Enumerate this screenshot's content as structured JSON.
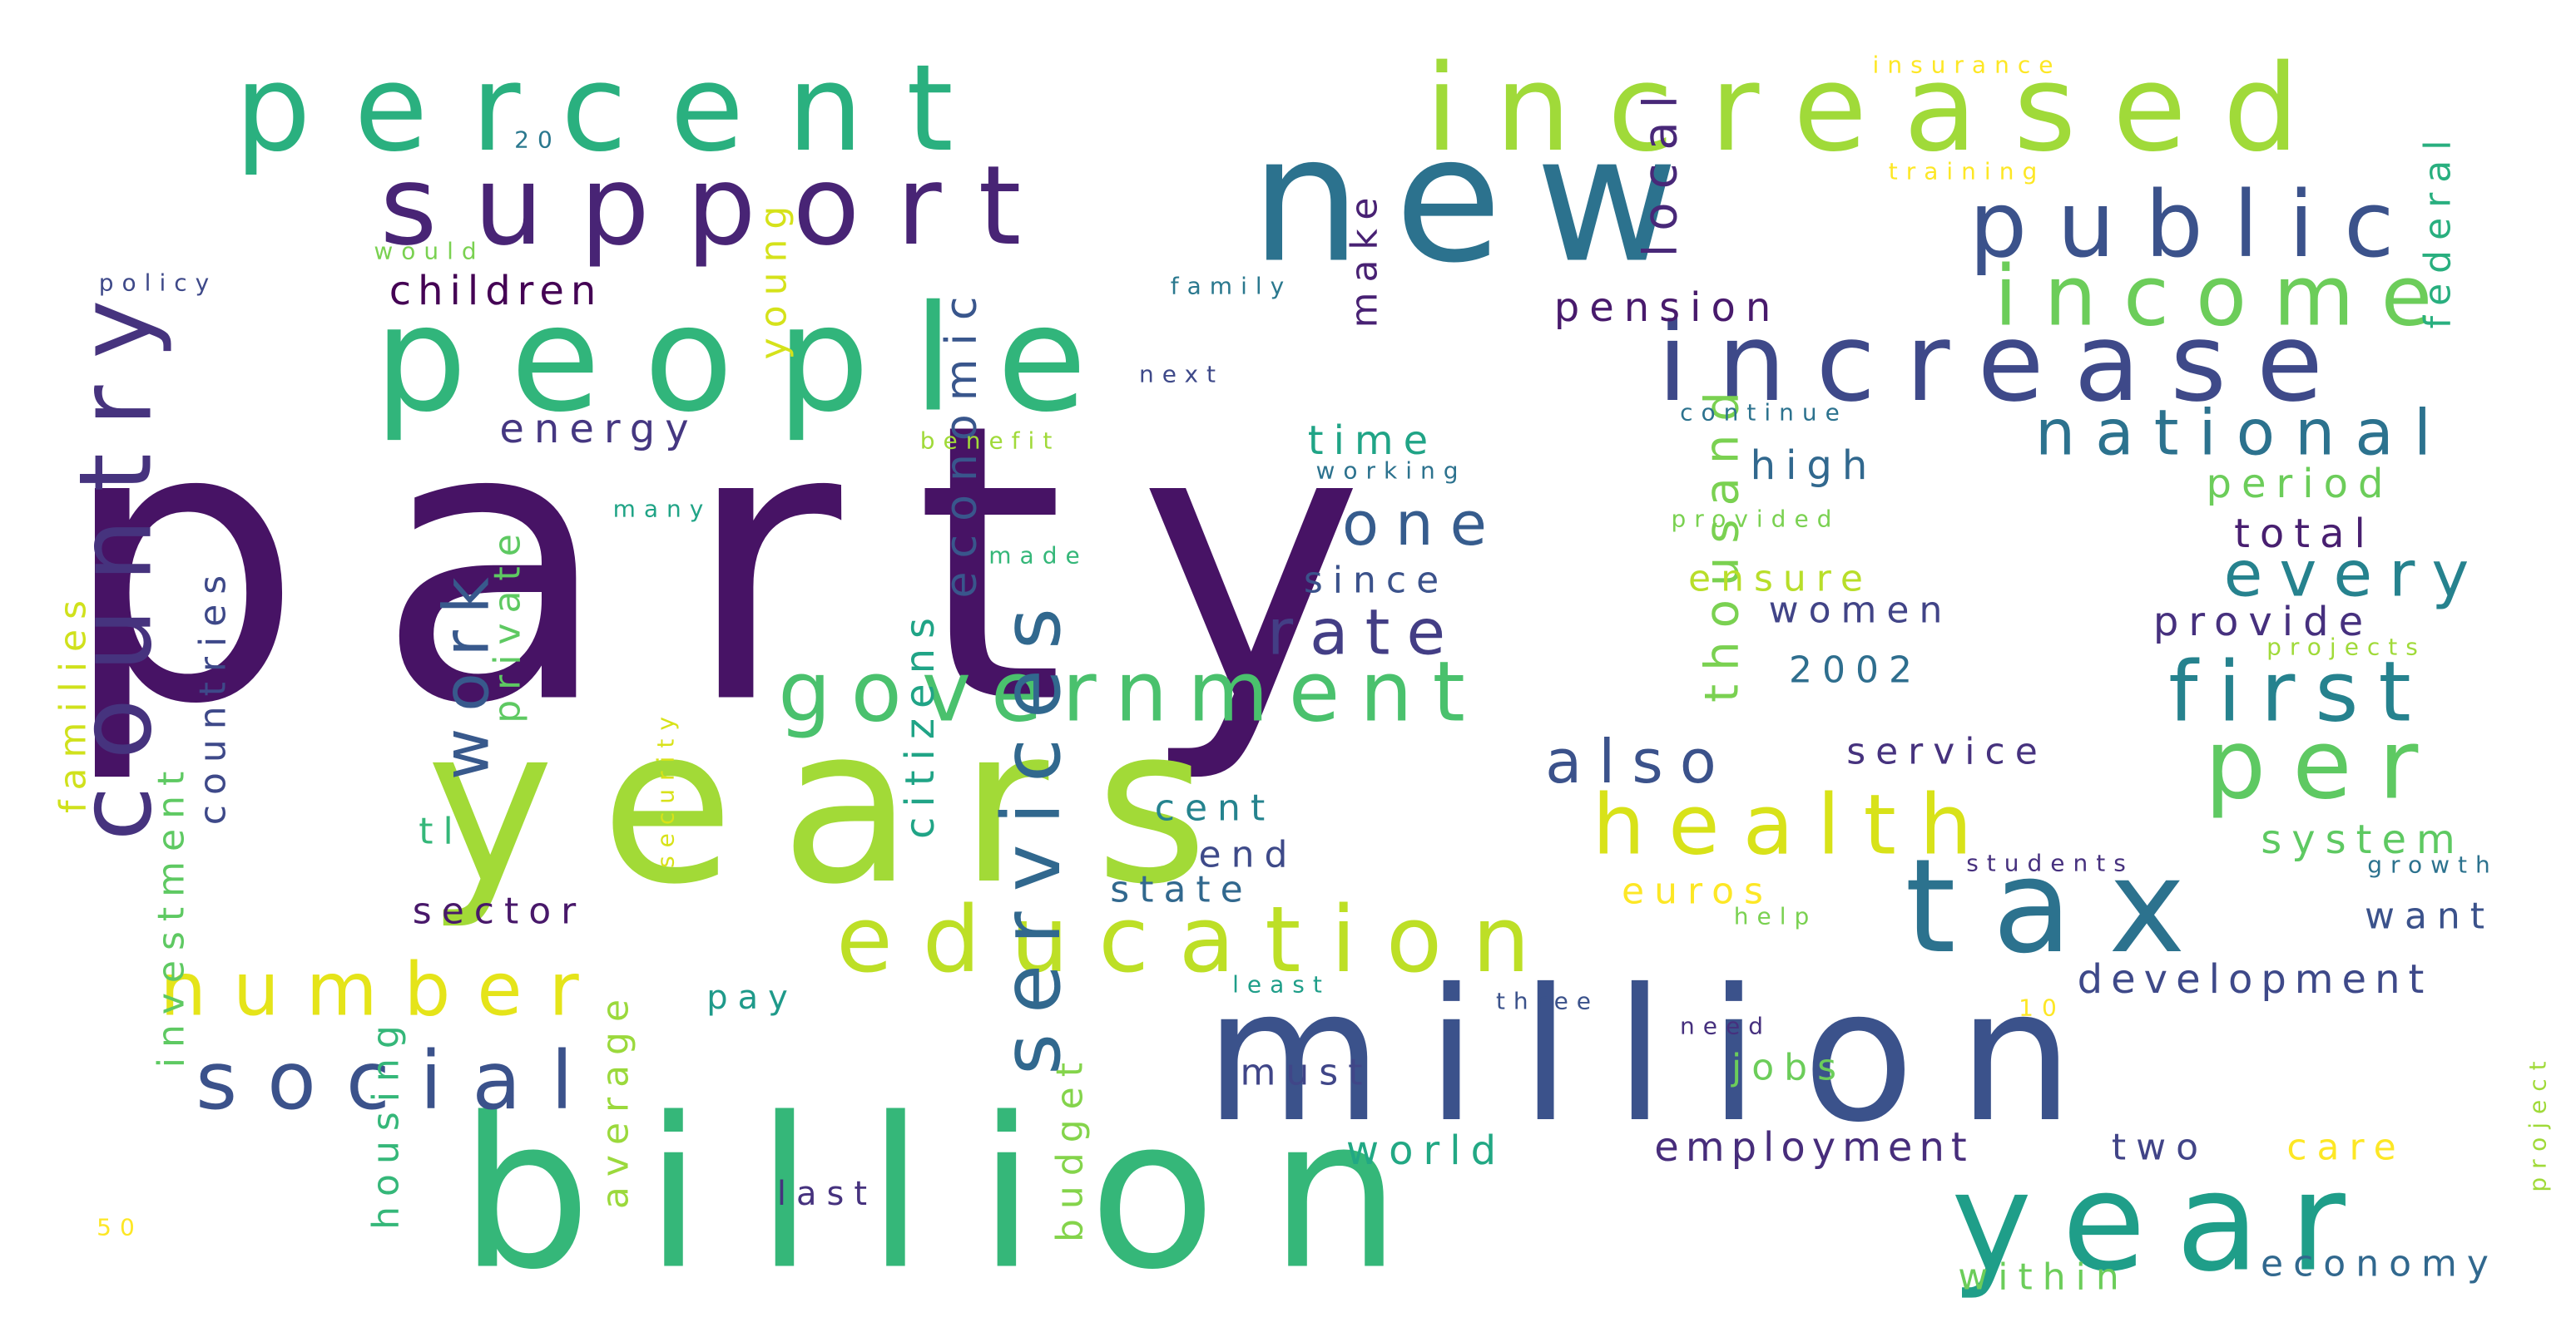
{
  "words": [
    {
      "text": "party",
      "color": "#471365"
    },
    {
      "text": "years",
      "color": "#a2da37"
    },
    {
      "text": "billion",
      "color": "#35b779"
    },
    {
      "text": "million",
      "color": "#3b528b"
    },
    {
      "text": "year",
      "color": "#1f9e89"
    },
    {
      "text": "new",
      "color": "#2c728e"
    },
    {
      "text": "people",
      "color": "#31b57b"
    },
    {
      "text": "percent",
      "color": "#2ab07f"
    },
    {
      "text": "increased",
      "color": "#a0da39"
    },
    {
      "text": "increase",
      "color": "#3e4989"
    },
    {
      "text": "support",
      "color": "#482475"
    },
    {
      "text": "public",
      "color": "#3b528b"
    },
    {
      "text": "income",
      "color": "#6ccd5a"
    },
    {
      "text": "tax",
      "color": "#2c728e"
    },
    {
      "text": "education",
      "color": "#bddf26"
    },
    {
      "text": "government",
      "color": "#4ac16d"
    },
    {
      "text": "health",
      "color": "#d8e219"
    },
    {
      "text": "first",
      "color": "#26828e"
    },
    {
      "text": "per",
      "color": "#5ec962"
    },
    {
      "text": "national",
      "color": "#2c728e"
    },
    {
      "text": "country",
      "color": "#46337e"
    },
    {
      "text": "social",
      "color": "#3b528b"
    },
    {
      "text": "number",
      "color": "#e5e419"
    },
    {
      "text": "services",
      "color": "#31688e"
    },
    {
      "text": "rate",
      "color": "#433e85"
    },
    {
      "text": "one",
      "color": "#365c8d"
    },
    {
      "text": "every",
      "color": "#26828e"
    },
    {
      "text": "also",
      "color": "#3b528b"
    },
    {
      "text": "work",
      "color": "#38598c"
    },
    {
      "text": "children",
      "color": "#440154"
    },
    {
      "text": "local",
      "color": "#482878"
    },
    {
      "text": "development",
      "color": "#3e4989"
    },
    {
      "text": "employment",
      "color": "#472d7b"
    },
    {
      "text": "economic",
      "color": "#39568c"
    },
    {
      "text": "citizens",
      "color": "#20a486"
    },
    {
      "text": "federal",
      "color": "#29af7f"
    },
    {
      "text": "pension",
      "color": "#481a6c"
    },
    {
      "text": "system",
      "color": "#5ec962"
    },
    {
      "text": "energy",
      "color": "#453781"
    },
    {
      "text": "young",
      "color": "#d5e21a"
    },
    {
      "text": "private",
      "color": "#5ec962"
    },
    {
      "text": "make",
      "color": "#482173"
    },
    {
      "text": "period",
      "color": "#6ccd5a"
    },
    {
      "text": "total",
      "color": "#481f70"
    },
    {
      "text": "provide",
      "color": "#46307e"
    },
    {
      "text": "women",
      "color": "#414487"
    },
    {
      "text": "2002",
      "color": "#2e6e8e"
    },
    {
      "text": "thousand",
      "color": "#7ad151"
    },
    {
      "text": "high",
      "color": "#31688e"
    },
    {
      "text": "since",
      "color": "#3b528b"
    },
    {
      "text": "cent",
      "color": "#25838e"
    },
    {
      "text": "end",
      "color": "#3e4a89"
    },
    {
      "text": "state",
      "color": "#31688e"
    },
    {
      "text": "time",
      "color": "#20a486"
    },
    {
      "text": "ensure",
      "color": "#b8de29"
    },
    {
      "text": "service",
      "color": "#46327e"
    },
    {
      "text": "families",
      "color": "#d0e11c"
    },
    {
      "text": "investment",
      "color": "#5ec962"
    },
    {
      "text": "countries",
      "color": "#3e4989"
    },
    {
      "text": "sector",
      "color": "#48186a"
    },
    {
      "text": "tl",
      "color": "#35b779"
    },
    {
      "text": "housing",
      "color": "#35b779"
    },
    {
      "text": "average",
      "color": "#9bd93c"
    },
    {
      "text": "budget",
      "color": "#84d44b"
    },
    {
      "text": "pay",
      "color": "#1f9a8a"
    },
    {
      "text": "last",
      "color": "#46327e"
    },
    {
      "text": "world",
      "color": "#22a884"
    },
    {
      "text": "must",
      "color": "#404688"
    },
    {
      "text": "euros",
      "color": "#fde725"
    },
    {
      "text": "jobs",
      "color": "#6ccd5a"
    },
    {
      "text": "two",
      "color": "#414487"
    },
    {
      "text": "care",
      "color": "#fde725"
    },
    {
      "text": "within",
      "color": "#6ccd5a"
    },
    {
      "text": "economy",
      "color": "#31688e"
    },
    {
      "text": "want",
      "color": "#3b528b"
    },
    {
      "text": "insurance",
      "color": "#fde725"
    },
    {
      "text": "training",
      "color": "#fde725"
    },
    {
      "text": "20",
      "color": "#2a788e"
    },
    {
      "text": "would",
      "color": "#7ad151"
    },
    {
      "text": "policy",
      "color": "#3e4989"
    },
    {
      "text": "family",
      "color": "#2a788e"
    },
    {
      "text": "next",
      "color": "#3e4989"
    },
    {
      "text": "benefit",
      "color": "#a0da39"
    },
    {
      "text": "continue",
      "color": "#2c728e"
    },
    {
      "text": "working",
      "color": "#2c728e"
    },
    {
      "text": "many",
      "color": "#20a486"
    },
    {
      "text": "made",
      "color": "#35b779"
    },
    {
      "text": "provided",
      "color": "#7ad151"
    },
    {
      "text": "projects",
      "color": "#a0da39"
    },
    {
      "text": "students",
      "color": "#46307e"
    },
    {
      "text": "growth",
      "color": "#2c728e"
    },
    {
      "text": "security",
      "color": "#d8e219"
    },
    {
      "text": "help",
      "color": "#7ad151"
    },
    {
      "text": "least",
      "color": "#1f9e89"
    },
    {
      "text": "three",
      "color": "#3b528b"
    },
    {
      "text": "need",
      "color": "#46307e"
    },
    {
      "text": "10",
      "color": "#fde725"
    },
    {
      "text": "project",
      "color": "#a0da39"
    },
    {
      "text": "50",
      "color": "#fde725"
    }
  ]
}
